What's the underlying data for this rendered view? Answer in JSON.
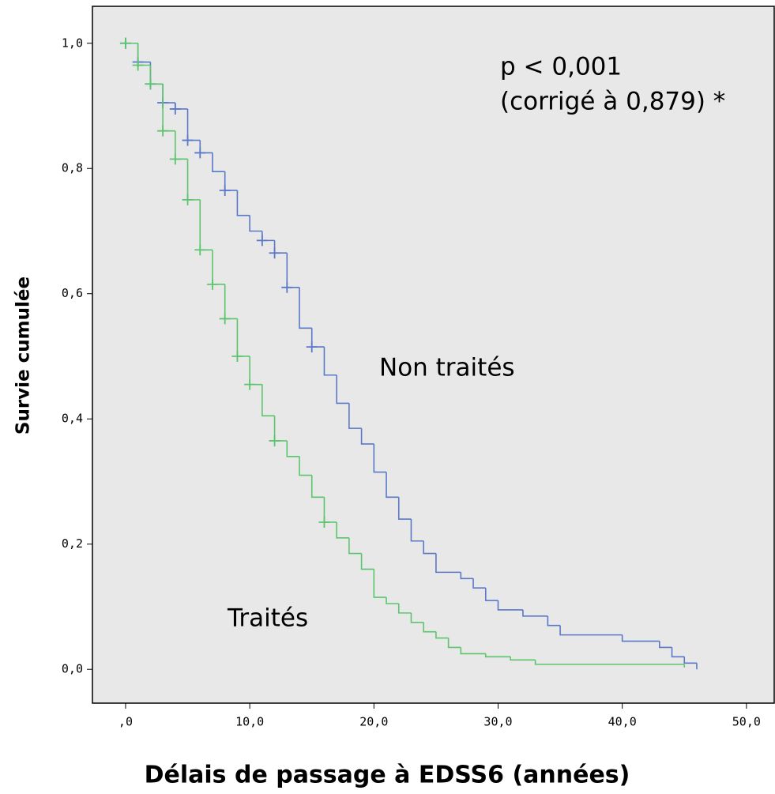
{
  "chart_data": {
    "type": "step",
    "annotations": [
      "p < 0,001",
      "(corrigé à 0,879) *"
    ],
    "x_label": "Délais de passage à EDSS6 (années)",
    "y_label": "Survie cumulée",
    "xlim": [
      -2.67,
      52.3
    ],
    "ylim": [
      -0.054,
      1.059
    ],
    "xticks": [
      {
        "value": 0,
        "label": ",0"
      },
      {
        "value": 10,
        "label": "10,0"
      },
      {
        "value": 20,
        "label": "20,0"
      },
      {
        "value": 30,
        "label": "30,0"
      },
      {
        "value": 40,
        "label": "40,0"
      },
      {
        "value": 50,
        "label": "50,0"
      }
    ],
    "yticks": [
      {
        "value": 0,
        "label": "0,0"
      },
      {
        "value": 0.2,
        "label": "0,2"
      },
      {
        "value": 0.4,
        "label": "0,4"
      },
      {
        "value": 0.6,
        "label": "0,6"
      },
      {
        "value": 0.8,
        "label": "0,8"
      },
      {
        "value": 1.0,
        "label": "1,0"
      }
    ],
    "series": [
      {
        "name": "Non traités",
        "color": "#5a78c8",
        "x": [
          0,
          1,
          2,
          3,
          4,
          5,
          6,
          7,
          8,
          9,
          10,
          11,
          12,
          13,
          14,
          15,
          16,
          17,
          18,
          19,
          20,
          21,
          22,
          23,
          24,
          25,
          27,
          28,
          29,
          30,
          32,
          34,
          35,
          40,
          43,
          44,
          45,
          46
        ],
        "values": [
          1.0,
          0.97,
          0.935,
          0.905,
          0.895,
          0.845,
          0.825,
          0.795,
          0.765,
          0.725,
          0.7,
          0.685,
          0.665,
          0.61,
          0.545,
          0.515,
          0.47,
          0.425,
          0.385,
          0.36,
          0.315,
          0.275,
          0.24,
          0.205,
          0.185,
          0.155,
          0.145,
          0.13,
          0.11,
          0.095,
          0.085,
          0.07,
          0.055,
          0.045,
          0.035,
          0.02,
          0.01,
          0.0
        ],
        "censored_x": [
          0,
          1,
          2,
          3,
          4,
          5,
          6,
          8,
          11,
          12,
          13,
          15
        ],
        "censored_values": [
          1.0,
          0.97,
          0.935,
          0.905,
          0.895,
          0.845,
          0.825,
          0.765,
          0.685,
          0.665,
          0.61,
          0.515
        ]
      },
      {
        "name": "Traités",
        "color": "#5cc56c",
        "x": [
          0,
          1,
          2,
          3,
          4,
          5,
          6,
          7,
          8,
          9,
          10,
          11,
          12,
          13,
          14,
          15,
          16,
          17,
          18,
          19,
          20,
          21,
          22,
          23,
          24,
          25,
          26,
          27,
          29,
          31,
          33,
          45
        ],
        "values": [
          1.0,
          0.965,
          0.935,
          0.86,
          0.815,
          0.75,
          0.67,
          0.615,
          0.56,
          0.5,
          0.455,
          0.405,
          0.365,
          0.34,
          0.31,
          0.275,
          0.235,
          0.21,
          0.185,
          0.16,
          0.115,
          0.105,
          0.09,
          0.075,
          0.06,
          0.05,
          0.035,
          0.025,
          0.02,
          0.015,
          0.008,
          0.003
        ],
        "censored_x": [
          0,
          1,
          2,
          3,
          4,
          5,
          6,
          7,
          8,
          9,
          10,
          12,
          16
        ],
        "censored_values": [
          1.0,
          0.965,
          0.935,
          0.86,
          0.815,
          0.75,
          0.67,
          0.615,
          0.56,
          0.5,
          0.455,
          0.365,
          0.235
        ]
      }
    ]
  }
}
